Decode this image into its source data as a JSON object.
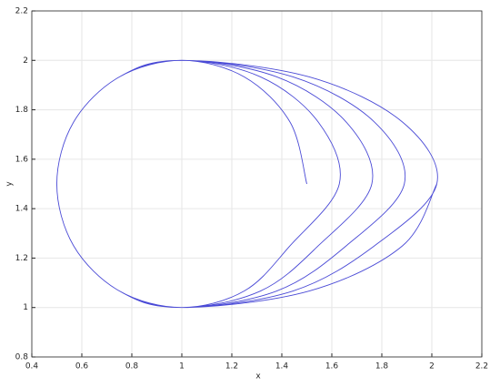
{
  "chart_data": {
    "type": "line",
    "x_label": "x",
    "y_label": "y",
    "x": [
      1.5,
      1.433,
      1.25,
      1,
      0.75,
      0.567,
      0.5,
      0.567,
      0.75,
      1,
      1.25,
      1.433,
      1.63,
      1.546,
      1.315,
      1,
      0.75,
      0.567,
      0.5,
      0.567,
      0.75,
      1,
      1.315,
      1.546,
      1.76,
      1.658,
      1.38,
      1,
      0.75,
      0.567,
      0.5,
      0.567,
      0.75,
      1,
      1.38,
      1.658,
      1.89,
      1.771,
      1.445,
      1,
      0.75,
      0.567,
      0.5,
      0.567,
      0.75,
      1,
      1.445,
      1.771,
      2.02,
      1.883,
      1.51,
      1,
      0.75,
      0.567,
      0.5,
      0.567,
      0.75,
      1,
      1.51,
      1.883,
      2.02
    ],
    "y": [
      1.5,
      1.75,
      1.933,
      2,
      1.933,
      1.75,
      1.5,
      1.25,
      1.067,
      1,
      1.067,
      1.25,
      1.5,
      1.75,
      1.933,
      2,
      1.933,
      1.75,
      1.5,
      1.25,
      1.067,
      1,
      1.067,
      1.25,
      1.5,
      1.75,
      1.933,
      2,
      1.933,
      1.75,
      1.5,
      1.25,
      1.067,
      1,
      1.067,
      1.25,
      1.5,
      1.75,
      1.933,
      2,
      1.933,
      1.75,
      1.5,
      1.25,
      1.067,
      1,
      1.067,
      1.25,
      1.5,
      1.75,
      1.933,
      2,
      1.933,
      1.75,
      1.5,
      1.25,
      1.067,
      1,
      1.067,
      1.25,
      1.5
    ],
    "color": "#4a4ad6",
    "xlim": [
      0.4,
      2.2
    ],
    "xticks": [
      0.4,
      0.6,
      0.8,
      1,
      1.2,
      1.4,
      1.6,
      1.8,
      2,
      2.2
    ],
    "ylim": [
      0.8,
      2.2
    ],
    "yticks": [
      0.8,
      1,
      1.2,
      1.4,
      1.6,
      1.8,
      2,
      2.2
    ],
    "grid": true
  }
}
